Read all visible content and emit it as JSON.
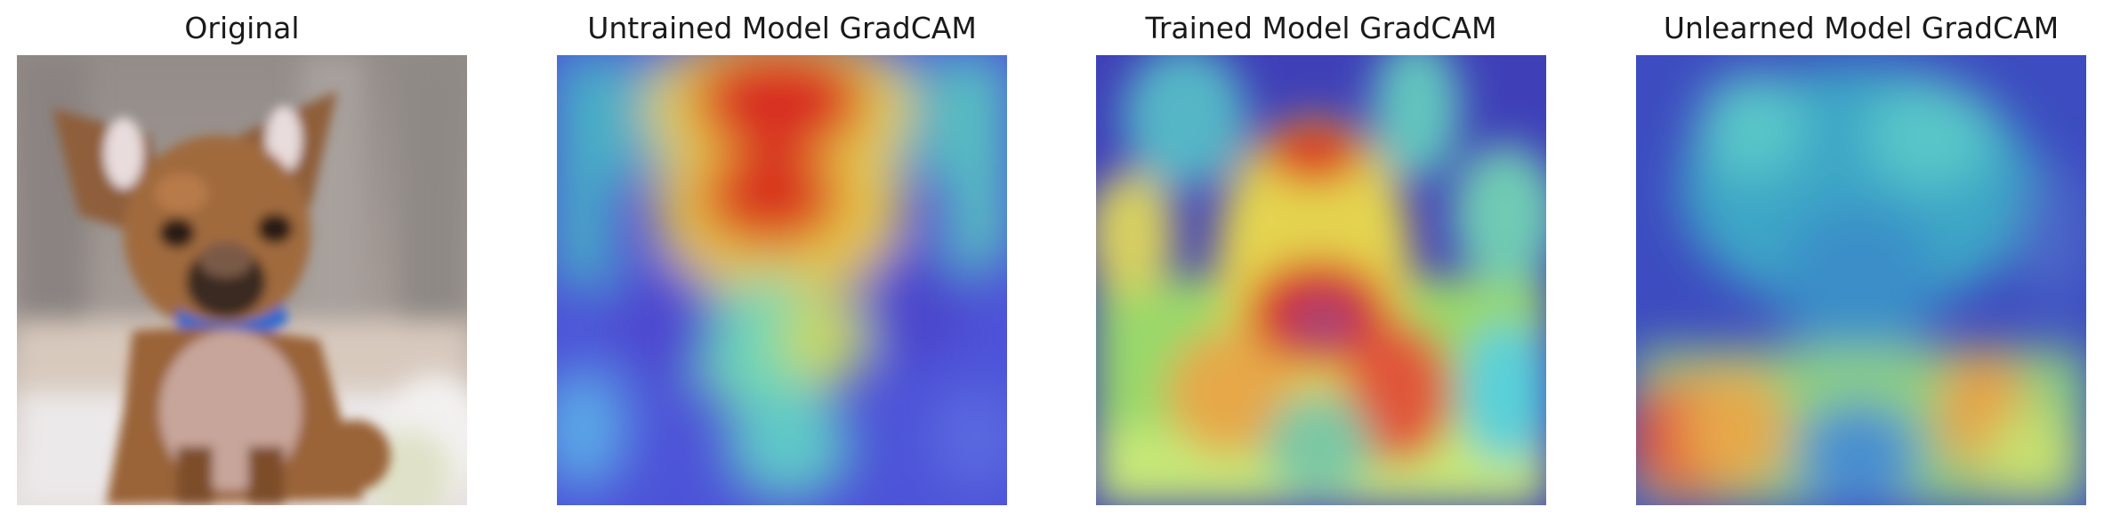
{
  "figure": {
    "panels": [
      {
        "id": "original",
        "title": "Original"
      },
      {
        "id": "untrained",
        "title": "Untrained Model GradCAM"
      },
      {
        "id": "trained",
        "title": "Trained Model GradCAM"
      },
      {
        "id": "unlearned",
        "title": "Unlearned Model GradCAM"
      }
    ]
  },
  "colors": {
    "heat_low": "#3b3bd6",
    "heat_mid": "#5fd0c4",
    "heat_warm": "#e8d44a",
    "heat_high": "#d8231c",
    "dog_fur": "#9b6436",
    "collar": "#2f6ad0",
    "background_wall": "#9a9491"
  }
}
